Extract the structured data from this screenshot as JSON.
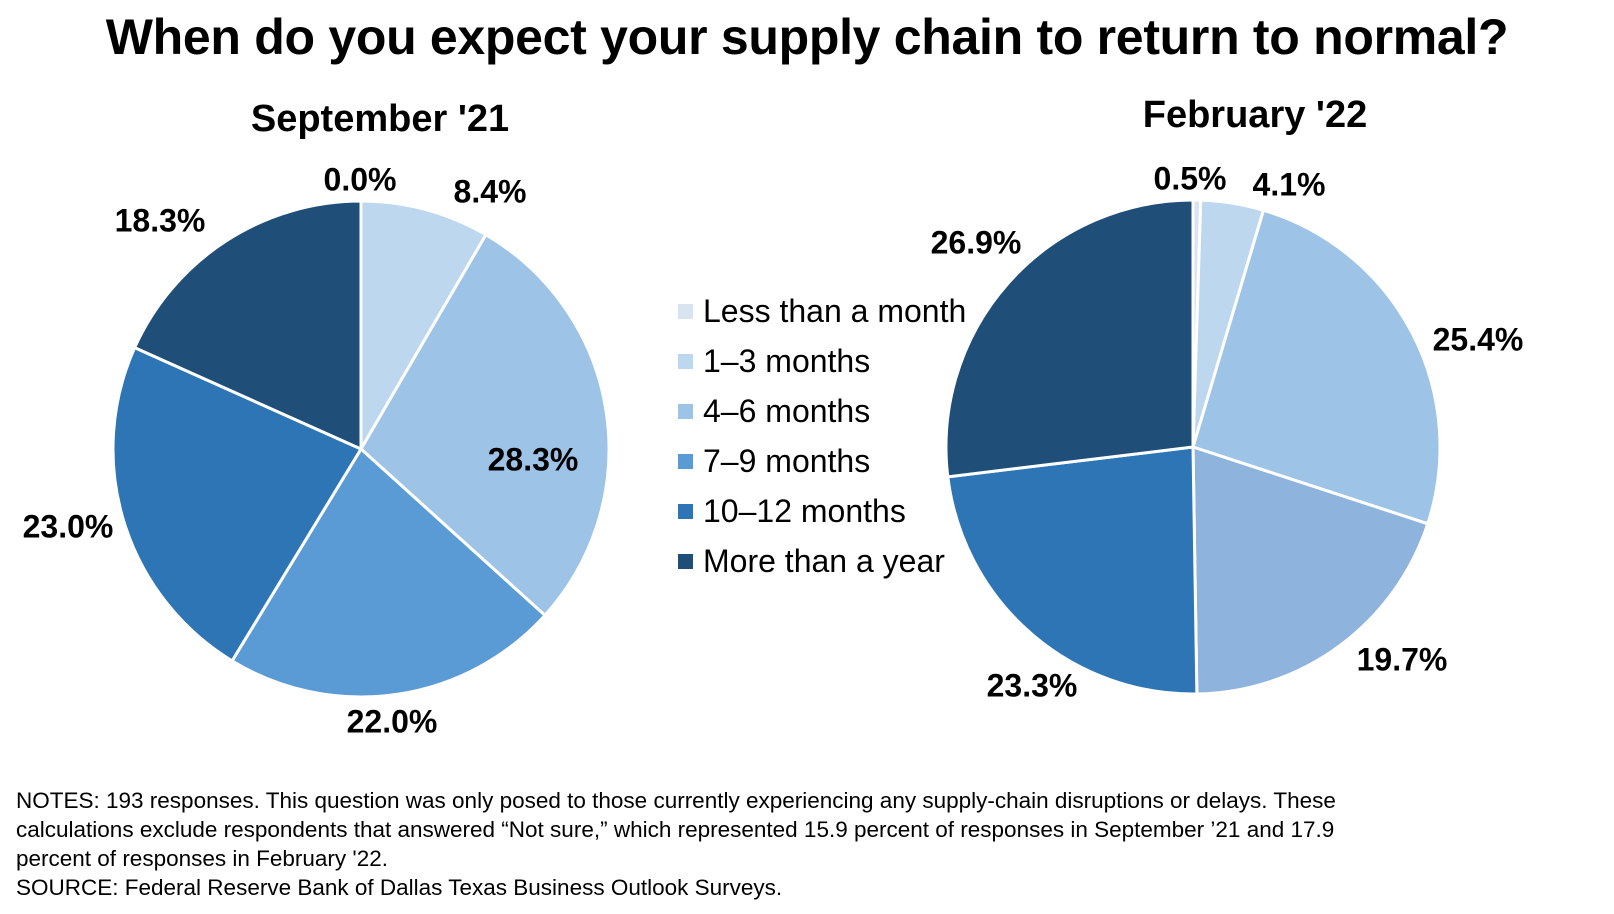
{
  "title": "When do you expect your supply chain to return to normal?",
  "colors": {
    "Less than a month": "#d9e4f1",
    "1–3 months": "#bdd7ee",
    "4–6 months": "#9dc3e6",
    "7–9 months": "#5b9bd5",
    "10–12 months": "#2e75b6",
    "More than a year": "#1f4e79",
    "feb_7_9_override": "#8eb4de"
  },
  "legend": [
    "Less than a month",
    "1–3 months",
    "4–6 months",
    "7–9 months",
    "10–12 months",
    "More than a year"
  ],
  "chart_data": [
    {
      "type": "pie",
      "title": "September '21",
      "categories": [
        "Less than a month",
        "1–3 months",
        "4–6 months",
        "7–9 months",
        "10–12 months",
        "More than a year"
      ],
      "values": [
        0.0,
        8.4,
        28.3,
        22.0,
        23.0,
        18.3
      ],
      "labels": [
        "0.0%",
        "8.4%",
        "28.3%",
        "22.0%",
        "23.0%",
        "18.3%"
      ]
    },
    {
      "type": "pie",
      "title": "February '22",
      "categories": [
        "Less than a month",
        "1–3 months",
        "4–6 months",
        "7–9 months",
        "10–12 months",
        "More than a year"
      ],
      "values": [
        0.5,
        4.1,
        25.4,
        19.7,
        23.3,
        26.9
      ],
      "labels": [
        "0.5%",
        "4.1%",
        "25.4%",
        "19.7%",
        "23.3%",
        "26.9%"
      ]
    }
  ],
  "notes": {
    "line1": "NOTES: 193 responses. This question was only posed to those currently experiencing any supply-chain disruptions or delays. These",
    "line2": "calculations exclude respondents that answered “Not sure,” which represented 15.9 percent of responses in September ’21 and 17.9",
    "line3": "percent of responses in February '22.",
    "source": "SOURCE: Federal Reserve Bank of Dallas Texas Business Outlook Surveys."
  }
}
